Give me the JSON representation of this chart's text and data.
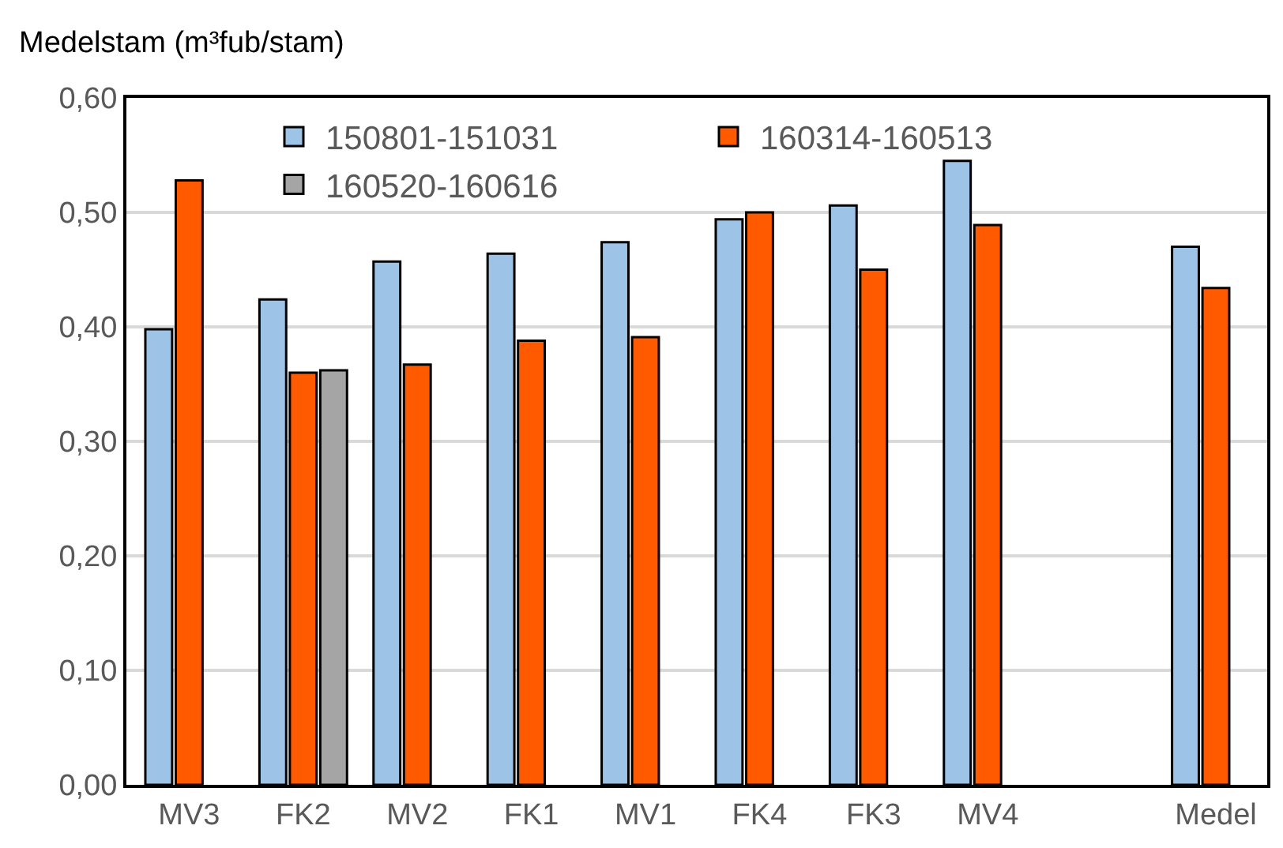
{
  "chart_data": {
    "type": "bar",
    "ylabel": "Medelstam (m³fub/stam)",
    "categories": [
      "MV3",
      "FK2",
      "MV2",
      "FK1",
      "MV1",
      "FK4",
      "FK3",
      "MV4",
      null,
      "Medel"
    ],
    "series": [
      {
        "name": "150801-151031",
        "color": "#9dc3e6",
        "values": [
          0.398,
          0.424,
          0.457,
          0.464,
          0.474,
          0.494,
          0.506,
          0.545,
          null,
          0.47
        ]
      },
      {
        "name": "160314-160513",
        "color": "#ff5a00",
        "values": [
          0.528,
          0.36,
          0.367,
          0.388,
          0.391,
          0.5,
          0.45,
          0.489,
          null,
          0.434
        ]
      },
      {
        "name": "160520-160616",
        "color": "#a5a5a5",
        "values": [
          null,
          0.362,
          null,
          null,
          null,
          null,
          null,
          null,
          null,
          null
        ]
      }
    ],
    "ylim": [
      0,
      0.6
    ],
    "yticks": [
      {
        "value": 0,
        "label": "0,00"
      },
      {
        "value": 0.1,
        "label": "0,10"
      },
      {
        "value": 0.2,
        "label": "0,20"
      },
      {
        "value": 0.3,
        "label": "0,30"
      },
      {
        "value": 0.4,
        "label": "0,40"
      },
      {
        "value": 0.5,
        "label": "0,50"
      },
      {
        "value": 0.6,
        "label": "0,60"
      }
    ],
    "grid": "y",
    "legend": "top"
  }
}
